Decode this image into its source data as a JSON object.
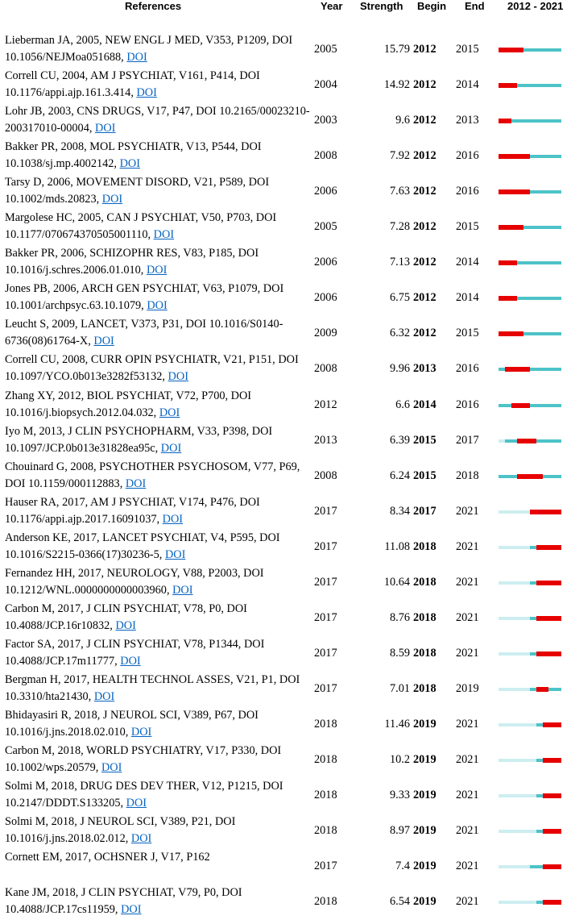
{
  "header": {
    "references": "References",
    "year": "Year",
    "strength": "Strength",
    "begin": "Begin",
    "end": "End",
    "range": "2012 - 2021"
  },
  "timeline": {
    "start": 2012,
    "end": 2021,
    "burst_color": "#e60000",
    "active_color": "#4dc3c8",
    "inactive_color": "#cdeef0"
  },
  "references": [
    {
      "text": "Lieberman JA, 2005, NEW ENGL J MED, V353, P1209, DOI 10.1056/NEJMoa051688,",
      "doi": "DOI",
      "year": "2005",
      "strength": "15.79",
      "begin": "2012",
      "end": "2015"
    },
    {
      "text": "Correll CU, 2004, AM J PSYCHIAT, V161, P414, DOI 10.1176/appi.ajp.161.3.414,",
      "doi": "DOI",
      "year": "2004",
      "strength": "14.92",
      "begin": "2012",
      "end": "2014"
    },
    {
      "text": "Lohr JB, 2003, CNS DRUGS, V17, P47, DOI 10.2165/00023210-200317010-00004,",
      "doi": "DOI",
      "year": "2003",
      "strength": "9.6",
      "begin": "2012",
      "end": "2013"
    },
    {
      "text": "Bakker PR, 2008, MOL PSYCHIATR, V13, P544, DOI 10.1038/sj.mp.4002142,",
      "doi": "DOI",
      "year": "2008",
      "strength": "7.92",
      "begin": "2012",
      "end": "2016"
    },
    {
      "text": "Tarsy D, 2006, MOVEMENT DISORD, V21, P589, DOI 10.1002/mds.20823,",
      "doi": "DOI",
      "year": "2006",
      "strength": "7.63",
      "begin": "2012",
      "end": "2016"
    },
    {
      "text": "Margolese HC, 2005, CAN J PSYCHIAT, V50, P703, DOI 10.1177/070674370505001110,",
      "doi": "DOI",
      "year": "2005",
      "strength": "7.28",
      "begin": "2012",
      "end": "2015"
    },
    {
      "text": "Bakker PR, 2006, SCHIZOPHR RES, V83, P185, DOI 10.1016/j.schres.2006.01.010,",
      "doi": "DOI",
      "year": "2006",
      "strength": "7.13",
      "begin": "2012",
      "end": "2014"
    },
    {
      "text": "Jones PB, 2006, ARCH GEN PSYCHIAT, V63, P1079, DOI 10.1001/archpsyc.63.10.1079,",
      "doi": "DOI",
      "year": "2006",
      "strength": "6.75",
      "begin": "2012",
      "end": "2014"
    },
    {
      "text": "Leucht S, 2009, LANCET, V373, P31, DOI 10.1016/S0140-6736(08)61764-X,",
      "doi": "DOI",
      "year": "2009",
      "strength": "6.32",
      "begin": "2012",
      "end": "2015"
    },
    {
      "text": "Correll CU, 2008, CURR OPIN PSYCHIATR, V21, P151, DOI 10.1097/YCO.0b013e3282f53132,",
      "doi": "DOI",
      "year": "2008",
      "strength": "9.96",
      "begin": "2013",
      "end": "2016"
    },
    {
      "text": "Zhang XY, 2012, BIOL PSYCHIAT, V72, P700, DOI 10.1016/j.biopsych.2012.04.032,",
      "doi": "DOI",
      "year": "2012",
      "strength": "6.6",
      "begin": "2014",
      "end": "2016"
    },
    {
      "text": "Iyo M, 2013, J CLIN PSYCHOPHARM, V33, P398, DOI 10.1097/JCP.0b013e31828ea95c,",
      "doi": "DOI",
      "year": "2013",
      "strength": "6.39",
      "begin": "2015",
      "end": "2017"
    },
    {
      "text": "Chouinard G, 2008, PSYCHOTHER PSYCHOSOM, V77, P69, DOI 10.1159/000112883,",
      "doi": "DOI",
      "year": "2008",
      "strength": "6.24",
      "begin": "2015",
      "end": "2018"
    },
    {
      "text": "Hauser RA, 2017, AM J PSYCHIAT, V174, P476, DOI 10.1176/appi.ajp.2017.16091037,",
      "doi": "DOI",
      "year": "2017",
      "strength": "8.34",
      "begin": "2017",
      "end": "2021"
    },
    {
      "text": "Anderson KE, 2017, LANCET PSYCHIAT, V4, P595, DOI 10.1016/S2215-0366(17)30236-5,",
      "doi": "DOI",
      "year": "2017",
      "strength": "11.08",
      "begin": "2018",
      "end": "2021"
    },
    {
      "text": "Fernandez HH, 2017, NEUROLOGY, V88, P2003, DOI 10.1212/WNL.0000000000003960,",
      "doi": "DOI",
      "year": "2017",
      "strength": "10.64",
      "begin": "2018",
      "end": "2021"
    },
    {
      "text": "Carbon M, 2017, J CLIN PSYCHIAT, V78, P0, DOI 10.4088/JCP.16r10832,",
      "doi": "DOI",
      "year": "2017",
      "strength": "8.76",
      "begin": "2018",
      "end": "2021"
    },
    {
      "text": "Factor SA, 2017, J CLIN PSYCHIAT, V78, P1344, DOI 10.4088/JCP.17m11777,",
      "doi": "DOI",
      "year": "2017",
      "strength": "8.59",
      "begin": "2018",
      "end": "2021"
    },
    {
      "text": "Bergman H, 2017, HEALTH TECHNOL ASSES, V21, P1, DOI 10.3310/hta21430,",
      "doi": "DOI",
      "year": "2017",
      "strength": "7.01",
      "begin": "2018",
      "end": "2019"
    },
    {
      "text": "Bhidayasiri R, 2018, J NEUROL SCI, V389, P67, DOI 10.1016/j.jns.2018.02.010,",
      "doi": "DOI",
      "year": "2018",
      "strength": "11.46",
      "begin": "2019",
      "end": "2021"
    },
    {
      "text": "Carbon M, 2018, WORLD PSYCHIATRY, V17, P330, DOI 10.1002/wps.20579,",
      "doi": "DOI",
      "year": "2018",
      "strength": "10.2",
      "begin": "2019",
      "end": "2021"
    },
    {
      "text": "Solmi M, 2018, DRUG DES DEV THER, V12, P1215, DOI 10.2147/DDDT.S133205,",
      "doi": "DOI",
      "year": "2018",
      "strength": "9.33",
      "begin": "2019",
      "end": "2021"
    },
    {
      "text": "Solmi M, 2018, J NEUROL SCI, V389, P21, DOI 10.1016/j.jns.2018.02.012,",
      "doi": "DOI",
      "year": "2018",
      "strength": "8.97",
      "begin": "2019",
      "end": "2021"
    },
    {
      "text": "Cornett EM, 2017, OCHSNER J, V17, P162",
      "doi": "",
      "year": "2017",
      "strength": "7.4",
      "begin": "2019",
      "end": "2021"
    },
    {
      "text": "Kane JM, 2018, J CLIN PSYCHIAT, V79, P0, DOI 10.4088/JCP.17cs11959,",
      "doi": "DOI",
      "year": "2018",
      "strength": "6.54",
      "begin": "2019",
      "end": "2021"
    }
  ]
}
